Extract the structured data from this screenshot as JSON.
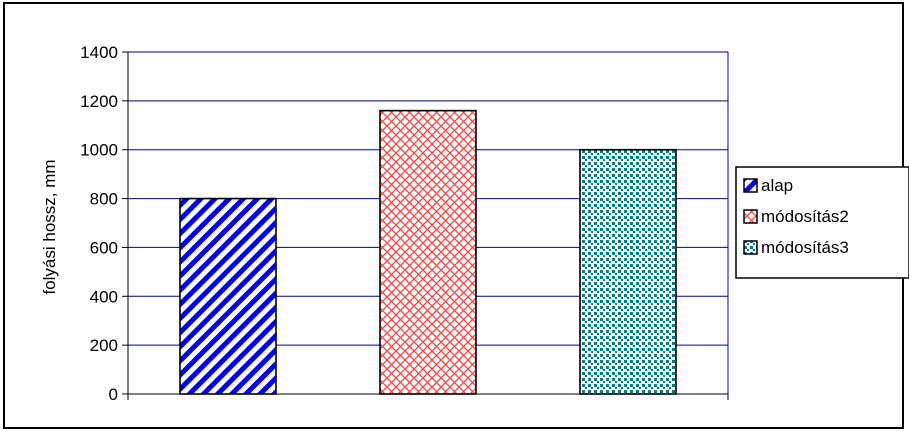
{
  "chart_data": {
    "type": "bar",
    "title": "",
    "xlabel": "",
    "ylabel": "folyási hossz, mm",
    "ylim": [
      0,
      1400
    ],
    "yticks": [
      0,
      200,
      400,
      600,
      800,
      1000,
      1200,
      1400
    ],
    "grid": true,
    "legend_position": "right",
    "series": [
      {
        "name": "alap",
        "value": 800,
        "color": "#0000ff",
        "pattern": "diagonal-stripes"
      },
      {
        "name": "módosítás2",
        "value": 1160,
        "color": "#ff4040",
        "pattern": "crosshatch"
      },
      {
        "name": "módosítás3",
        "value": 1000,
        "color": "#008080",
        "pattern": "dots"
      }
    ]
  },
  "colors": {
    "plot_border": "#000000",
    "gridline": "#000080"
  }
}
